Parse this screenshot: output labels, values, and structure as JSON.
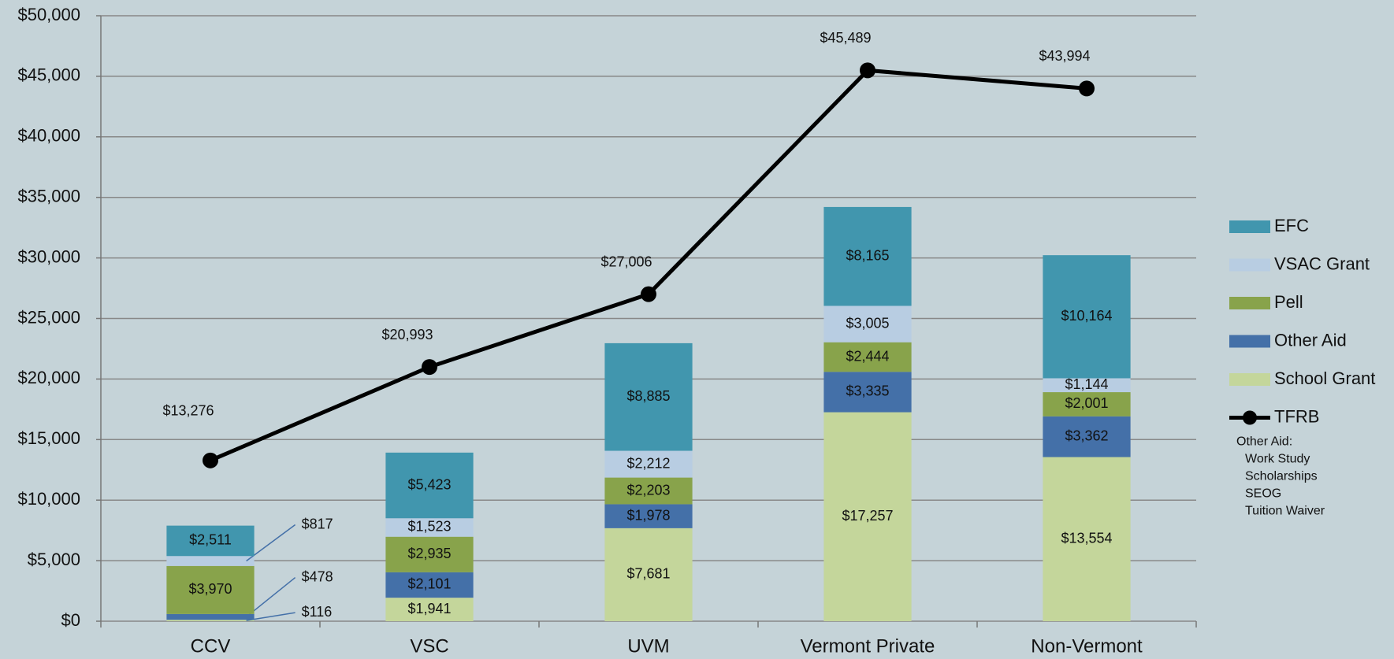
{
  "chart_data": {
    "type": "stacked-bar-line",
    "categories": [
      "CCV",
      "VSC",
      "UVM",
      "Vermont Private",
      "Non-Vermont"
    ],
    "series": [
      {
        "name": "School Grant",
        "color": "#c4d69b",
        "values": [
          116,
          1941,
          7681,
          17257,
          13554
        ],
        "value_labels": [
          "$116",
          "$1,941",
          "$7,681",
          "$17,257",
          "$13,554"
        ]
      },
      {
        "name": "Other Aid",
        "color": "#4470a8",
        "values": [
          478,
          2101,
          1978,
          3335,
          3362
        ],
        "value_labels": [
          "$478",
          "$2,101",
          "$1,978",
          "$3,335",
          "$3,362"
        ]
      },
      {
        "name": "Pell",
        "color": "#88a34b",
        "values": [
          3970,
          2935,
          2203,
          2444,
          2001
        ],
        "value_labels": [
          "$3,970",
          "$2,935",
          "$2,203",
          "$2,444",
          "$2,001"
        ]
      },
      {
        "name": "VSAC Grant",
        "color": "#b8cde2",
        "values": [
          817,
          1523,
          2212,
          3005,
          1144
        ],
        "value_labels": [
          "$817",
          "$1,523",
          "$2,212",
          "$3,005",
          "$1,144"
        ]
      },
      {
        "name": "EFC",
        "color": "#4196ae",
        "values": [
          2511,
          5423,
          8885,
          8165,
          10164
        ],
        "value_labels": [
          "$2,511",
          "$5,423",
          "$8,885",
          "$8,165",
          "$10,164"
        ]
      }
    ],
    "line": {
      "name": "TFRB",
      "color": "#000000",
      "values": [
        13276,
        20993,
        27006,
        45489,
        43994
      ],
      "value_labels": [
        "$13,276",
        "$20,993",
        "$27,006",
        "$45,489",
        "$43,994"
      ]
    },
    "legend_order": [
      4,
      3,
      2,
      1,
      0
    ],
    "legend_note": [
      "Other Aid:",
      "Work Study",
      "Scholarships",
      "SEOG",
      "Tuition Waiver"
    ],
    "ylim": [
      0,
      50000
    ],
    "yticks": [
      {
        "value": 0,
        "label": "$0"
      },
      {
        "value": 5000,
        "label": "$5,000"
      },
      {
        "value": 10000,
        "label": "$10,000"
      },
      {
        "value": 15000,
        "label": "$15,000"
      },
      {
        "value": 20000,
        "label": "$20,000"
      },
      {
        "value": 25000,
        "label": "$25,000"
      },
      {
        "value": 30000,
        "label": "$30,000"
      },
      {
        "value": 35000,
        "label": "$35,000"
      },
      {
        "value": 40000,
        "label": "$40,000"
      },
      {
        "value": 45000,
        "label": "$45,000"
      },
      {
        "value": 50000,
        "label": "$50,000"
      }
    ],
    "grid": true,
    "legend": "right"
  }
}
